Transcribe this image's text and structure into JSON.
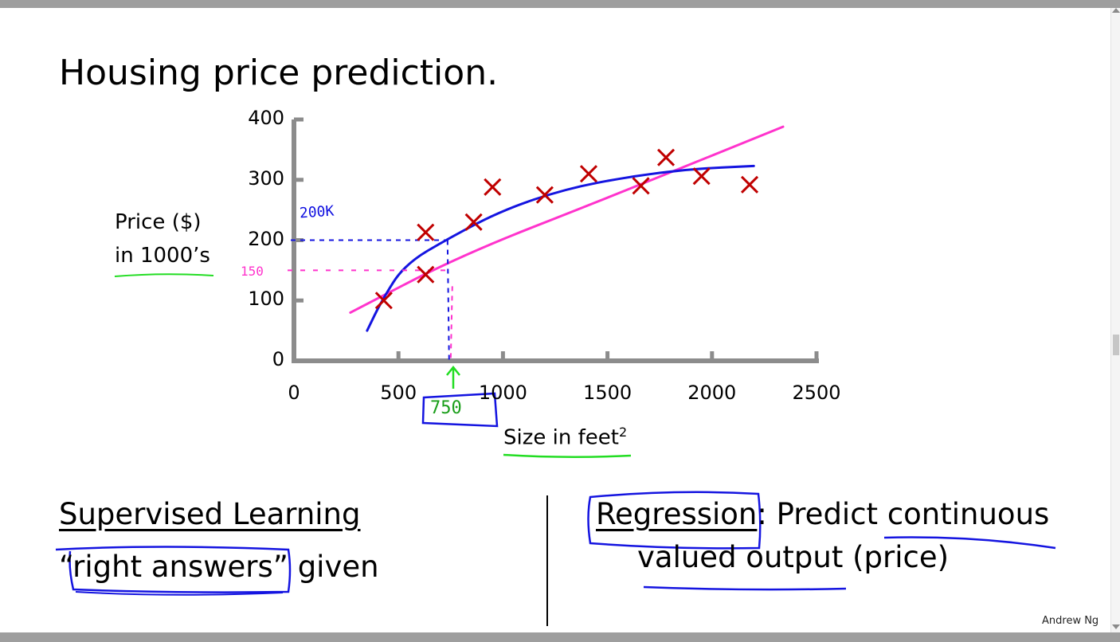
{
  "slide": {
    "title": "Housing price prediction.",
    "author": "Andrew Ng"
  },
  "chart_data": {
    "type": "scatter",
    "xlabel": "Size in feet",
    "xlabel_superscript": "2",
    "ylabel_line1": "Price ($)",
    "ylabel_line2": "in 1000’s",
    "xlim": [
      0,
      2500
    ],
    "ylim": [
      0,
      400
    ],
    "x_ticks": [
      "0",
      "500",
      "1000",
      "1500",
      "2000",
      "2500"
    ],
    "y_ticks": [
      "0",
      "100",
      "200",
      "300",
      "400"
    ],
    "points": [
      {
        "x": 430,
        "y": 100
      },
      {
        "x": 630,
        "y": 143
      },
      {
        "x": 630,
        "y": 213
      },
      {
        "x": 860,
        "y": 230
      },
      {
        "x": 950,
        "y": 288
      },
      {
        "x": 1200,
        "y": 275
      },
      {
        "x": 1410,
        "y": 310
      },
      {
        "x": 1660,
        "y": 290
      },
      {
        "x": 1780,
        "y": 337
      },
      {
        "x": 1950,
        "y": 306
      },
      {
        "x": 2180,
        "y": 292
      }
    ],
    "fit_lines": [
      {
        "kind": "straight",
        "color": "#ff33cc",
        "points": [
          [
            270,
            80
          ],
          [
            800,
            175
          ],
          [
            1500,
            270
          ],
          [
            2340,
            388
          ]
        ]
      },
      {
        "kind": "curve",
        "color": "#1414e0",
        "points": [
          [
            350,
            50
          ],
          [
            420,
            100
          ],
          [
            530,
            160
          ],
          [
            750,
            205
          ],
          [
            1000,
            250
          ],
          [
            1300,
            285
          ],
          [
            1600,
            305
          ],
          [
            1900,
            318
          ],
          [
            2200,
            323
          ]
        ]
      }
    ],
    "annotations": {
      "blue_value": "200K",
      "pink_value": "150",
      "green_value": "750",
      "marker_x": 750,
      "blue_y": 200,
      "pink_y": 150
    }
  },
  "sections": {
    "left": {
      "heading": "Supervised Learning",
      "line_open_quote": "“",
      "line_highlight": "right answers”",
      "line_rest": " given"
    },
    "right": {
      "term": "Regression",
      "rest_line1": ": Predict continuous",
      "line2": "valued output (price)"
    }
  }
}
